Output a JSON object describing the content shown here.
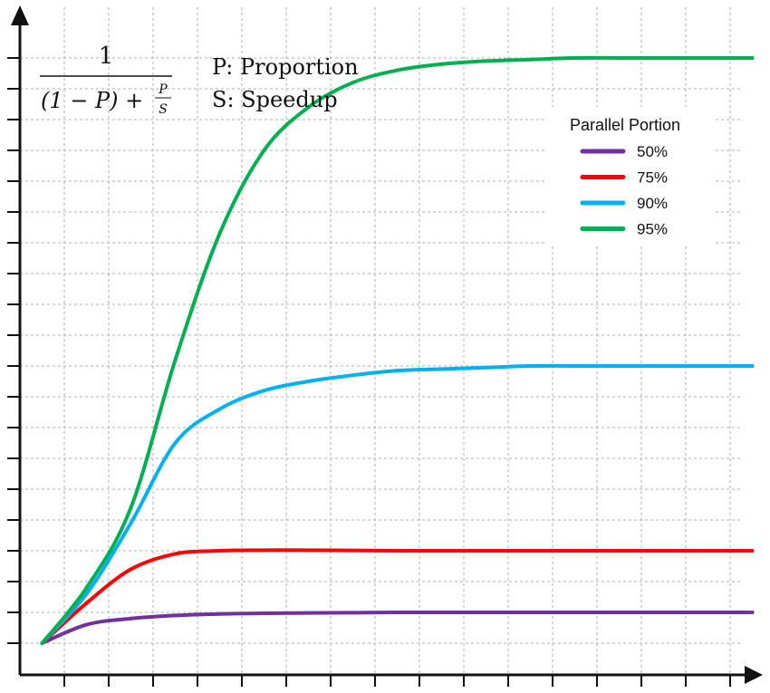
{
  "chart_data": {
    "type": "line",
    "title": "",
    "xlabel": "",
    "ylabel": "",
    "grid": true,
    "legend_position": "top-right",
    "legend_title": "Parallel Portion",
    "x": [
      1,
      2,
      3,
      4,
      5,
      6,
      7,
      8,
      9,
      10,
      11,
      12,
      13,
      14,
      15,
      16,
      17
    ],
    "xlim": [
      0.5,
      17.5
    ],
    "ylim": [
      0,
      20.6
    ],
    "series": [
      {
        "name": "50%",
        "color": "#7030a0",
        "values": [
          1.0,
          1.6,
          1.8,
          1.9,
          1.95,
          1.97,
          1.98,
          1.99,
          2.0,
          2.0,
          2.0,
          2.0,
          2.0,
          2.0,
          2.0,
          2.0,
          2.0
        ]
      },
      {
        "name": "75%",
        "color": "#ff0000",
        "values": [
          1.0,
          2.3,
          3.4,
          3.9,
          4.0,
          4.02,
          4.02,
          4.01,
          4.0,
          4.0,
          4.0,
          4.0,
          4.0,
          4.0,
          4.0,
          4.0,
          4.0
        ]
      },
      {
        "name": "90%",
        "color": "#00b0f0",
        "values": [
          1.0,
          2.6,
          4.9,
          7.5,
          8.6,
          9.2,
          9.5,
          9.7,
          9.85,
          9.9,
          9.95,
          10.0,
          10.0,
          10.0,
          10.0,
          10.0,
          10.0
        ]
      },
      {
        "name": "95%",
        "color": "#00b050",
        "values": [
          1.0,
          2.8,
          5.4,
          10.2,
          14.3,
          17.0,
          18.4,
          19.2,
          19.6,
          19.8,
          19.9,
          19.95,
          20.0,
          20.0,
          20.0,
          20.0,
          20.0
        ]
      }
    ]
  },
  "formula": {
    "numerator": "1",
    "denominator": "(1 − P) + ",
    "fraction_num": "P",
    "fraction_den": "S"
  },
  "notes": {
    "proportion": "P: Proportion",
    "speedup": "S: Speedup"
  }
}
